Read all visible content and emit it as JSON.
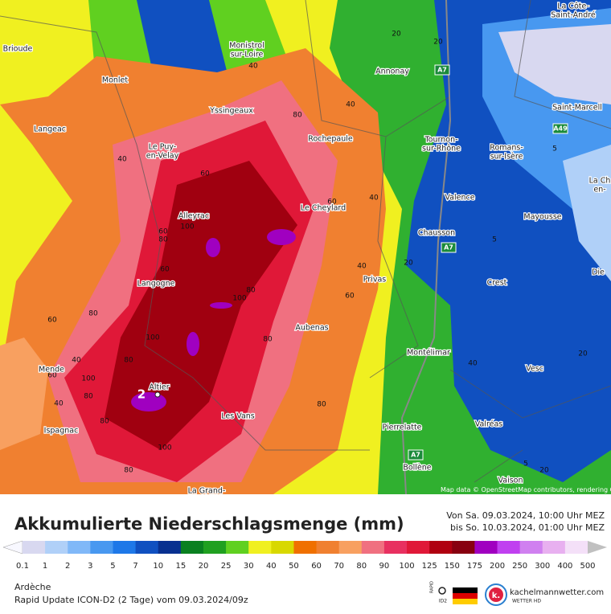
{
  "map": {
    "places": [
      [
        "Brioude"
      ],
      [
        "Monlet"
      ],
      [
        "Langeac"
      ],
      [
        "Le Puy-",
        "en-Velay"
      ],
      [
        "Monistrol",
        "sur-Loire"
      ],
      [
        "Yssingeaux"
      ],
      [
        "Annonay"
      ],
      [
        "Rochepaule"
      ],
      [
        "Tournon-",
        "sur-Rhône"
      ],
      [
        "Romans-",
        "sur-Isère"
      ],
      [
        "Saint-Marcell"
      ],
      [
        "La Côte-",
        "Saint-André"
      ],
      [
        "Valence"
      ],
      [
        "Le Cheylard"
      ],
      [
        "Alleyrac"
      ],
      [
        "Chausson"
      ],
      [
        "Mayousse"
      ],
      [
        "Langogne"
      ],
      [
        "Privas"
      ],
      [
        "Crest"
      ],
      [
        "Die"
      ],
      [
        "Aubenas"
      ],
      [
        "Montélimar"
      ],
      [
        "Mende"
      ],
      [
        "Altier"
      ],
      [
        "Vesc"
      ],
      [
        "Les Vans"
      ],
      [
        "Valréas"
      ],
      [
        "Ispagnac"
      ],
      [
        "Pierrelatte"
      ],
      [
        "Bollène"
      ],
      [
        "Vaison"
      ],
      [
        "La Grand-"
      ],
      [
        "La Ch",
        "en-"
      ]
    ],
    "roads": [
      "A7",
      "A7",
      "A7",
      "A49"
    ],
    "contour_labels": [
      40,
      80,
      60,
      40,
      100,
      60,
      80,
      60,
      40,
      20,
      20,
      40,
      60,
      40,
      80,
      100,
      100,
      80,
      80,
      40,
      100,
      60,
      40,
      80,
      80,
      100,
      80,
      80,
      60,
      20,
      5,
      5,
      20,
      40,
      5,
      20,
      60,
      80
    ],
    "maximum_label": "2",
    "attribution": "Map data © OpenStreetMap contributors, rendering GIScience Research Group @ Heidelberg University"
  },
  "legend": {
    "title": "Akkumulierte Niederschlagsmenge (mm)",
    "period_from": "Von Sa. 09.03.2024, 10:00 Uhr MEZ",
    "period_to": "bis So. 10.03.2024, 01:00 Uhr MEZ",
    "labels": [
      0.1,
      1,
      2,
      3,
      5,
      7,
      10,
      15,
      20,
      25,
      30,
      40,
      50,
      60,
      70,
      80,
      90,
      100,
      125,
      150,
      175,
      200,
      250,
      300,
      400,
      500
    ],
    "colors": [
      "#d8d8f0",
      "#b0d0f8",
      "#80b8f8",
      "#4898f0",
      "#1e78e8",
      "#1050c0",
      "#083090",
      "#0a8020",
      "#20a020",
      "#60d020",
      "#f0f020",
      "#d8d800",
      "#f07000",
      "#f08030",
      "#f8a060",
      "#f07080",
      "#e83060",
      "#e01838",
      "#b00010",
      "#880010",
      "#a000c0",
      "#c040f0",
      "#d080f0",
      "#e8b0f0",
      "#f4e0f8"
    ],
    "under_color": "#f8f8ff",
    "over_color": "#c0c0c0"
  },
  "footer": {
    "region": "Ardèche",
    "model": "Rapid Update ICON-D2 (2 Tage) vom 09.03.2024/09z",
    "badge_top": "RAPID",
    "badge_bottom": "ID2",
    "brand": "kachelmannwetter.com",
    "brand_sub": "WETTER HD",
    "logo_letter": "k."
  }
}
